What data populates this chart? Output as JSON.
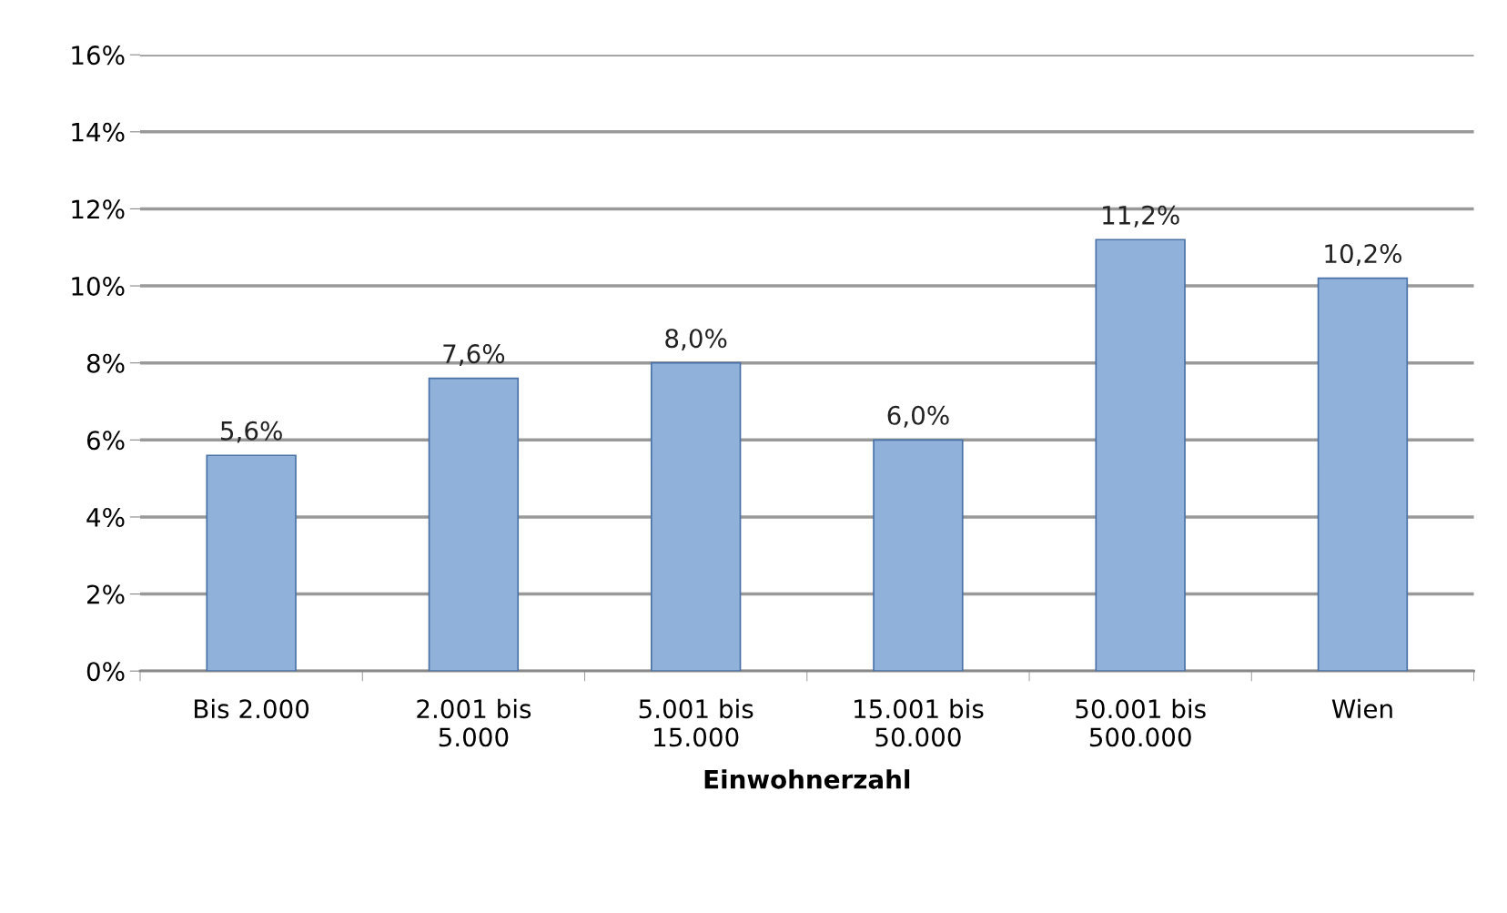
{
  "chart_data": {
    "type": "bar",
    "xlabel": "Einwohnerzahl",
    "categories": [
      "Bis 2.000",
      "2.001 bis\n5.000",
      "5.001 bis\n15.000",
      "15.001 bis\n50.000",
      "50.001 bis\n500.000",
      "Wien"
    ],
    "values": [
      5.6,
      7.6,
      8.0,
      6.0,
      11.2,
      10.2
    ],
    "value_labels": [
      "5,6%",
      "7,6%",
      "8,0%",
      "6,0%",
      "11,2%",
      "10,2%"
    ],
    "color": "#8fb1da",
    "ylim": [
      0,
      16
    ],
    "yticks": [
      {
        "value": 0,
        "label": "0%"
      },
      {
        "value": 2,
        "label": "2%"
      },
      {
        "value": 4,
        "label": "4%"
      },
      {
        "value": 6,
        "label": "6%"
      },
      {
        "value": 8,
        "label": "8%"
      },
      {
        "value": 10,
        "label": "10%"
      },
      {
        "value": 12,
        "label": "12%"
      },
      {
        "value": 14,
        "label": "14%"
      },
      {
        "value": 16,
        "label": "16%"
      }
    ],
    "grid": "y"
  }
}
